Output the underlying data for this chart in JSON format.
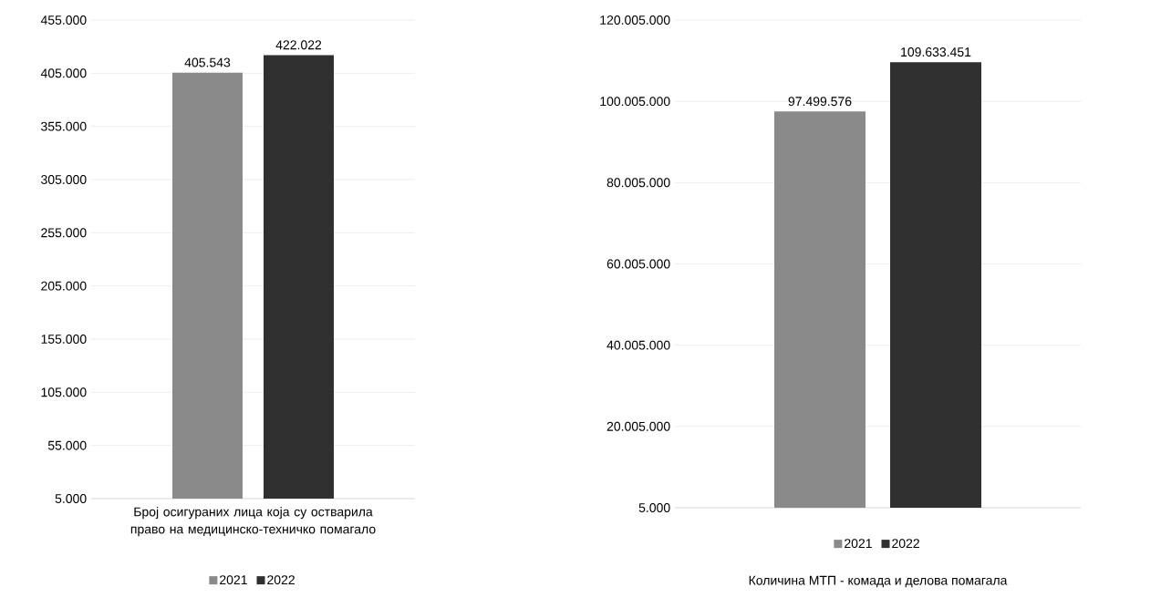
{
  "chart_data": [
    {
      "type": "bar",
      "categories": [
        "Број осигураних лица која су остварила право на медицинско-техничко помагало"
      ],
      "series": [
        {
          "name": "2021",
          "color": "#8a8a8a",
          "values": [
            405543
          ],
          "value_labels": [
            "405.543"
          ]
        },
        {
          "name": "2022",
          "color": "#303030",
          "values": [
            422022
          ],
          "value_labels": [
            "422.022"
          ]
        }
      ],
      "ylim": [
        5000,
        455000
      ],
      "yticks": [
        {
          "value": 5000,
          "label": "5.000"
        },
        {
          "value": 55000,
          "label": "55.000"
        },
        {
          "value": 105000,
          "label": "105.000"
        },
        {
          "value": 155000,
          "label": "155.000"
        },
        {
          "value": 205000,
          "label": "205.000"
        },
        {
          "value": 255000,
          "label": "255.000"
        },
        {
          "value": 305000,
          "label": "305.000"
        },
        {
          "value": 355000,
          "label": "355.000"
        },
        {
          "value": 405000,
          "label": "405.000"
        },
        {
          "value": 455000,
          "label": "455.000"
        }
      ],
      "grid": "y",
      "legend": "bottom"
    },
    {
      "type": "bar",
      "categories": [
        null
      ],
      "xlabel": "Количина МТП - комада и делова помагала",
      "series": [
        {
          "name": "2021",
          "color": "#8a8a8a",
          "values": [
            97499576
          ],
          "value_labels": [
            "97.499.576"
          ]
        },
        {
          "name": "2022",
          "color": "#303030",
          "values": [
            109633451
          ],
          "value_labels": [
            "109.633.451"
          ]
        }
      ],
      "ylim": [
        5000,
        120005000
      ],
      "yticks": [
        {
          "value": 5000,
          "label": "5.000"
        },
        {
          "value": 20005000,
          "label": "20.005.000"
        },
        {
          "value": 40005000,
          "label": "40.005.000"
        },
        {
          "value": 60005000,
          "label": "60.005.000"
        },
        {
          "value": 80005000,
          "label": "80.005.000"
        },
        {
          "value": 100005000,
          "label": "100.005.000"
        },
        {
          "value": 120005000,
          "label": "120.005.000"
        }
      ],
      "grid": "y",
      "legend": "bottom"
    }
  ]
}
